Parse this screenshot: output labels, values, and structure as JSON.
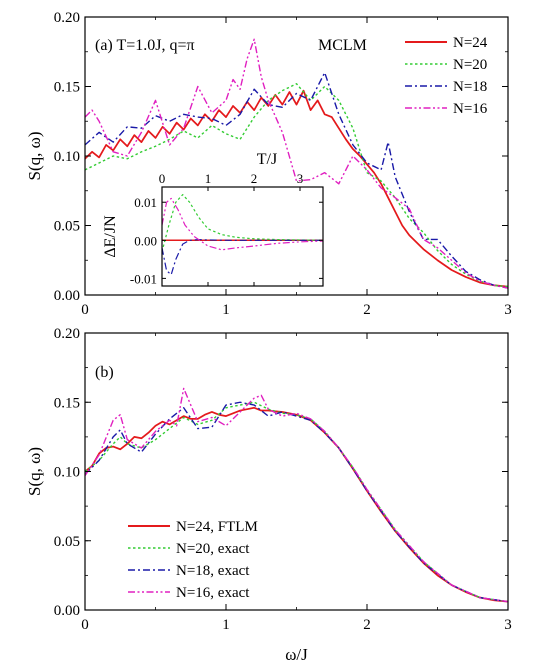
{
  "chart_data": [
    {
      "type": "line",
      "panel_label": "(a) T=1.0J, q=π",
      "annotation": "MCLM",
      "xlabel": "",
      "ylabel": "S(q, ω)",
      "xlim": [
        0,
        3
      ],
      "ylim": [
        0,
        0.2
      ],
      "xticks": [
        "0",
        "1",
        "2",
        "3"
      ],
      "yticks": [
        "0.00",
        "0.05",
        "0.10",
        "0.15",
        "0.20"
      ],
      "legend_position": "top-right",
      "series": [
        {
          "name": "N=24",
          "color": "#e41a1c",
          "dash": "solid",
          "x": [
            0,
            0.05,
            0.1,
            0.15,
            0.2,
            0.25,
            0.3,
            0.35,
            0.4,
            0.45,
            0.5,
            0.55,
            0.6,
            0.65,
            0.7,
            0.75,
            0.8,
            0.85,
            0.9,
            0.95,
            1.0,
            1.05,
            1.1,
            1.15,
            1.2,
            1.25,
            1.3,
            1.35,
            1.4,
            1.45,
            1.5,
            1.55,
            1.6,
            1.65,
            1.7,
            1.75,
            1.8,
            1.85,
            1.9,
            1.95,
            2.0,
            2.05,
            2.1,
            2.15,
            2.2,
            2.25,
            2.3,
            2.4,
            2.5,
            2.6,
            2.7,
            2.8,
            2.9,
            3.0
          ],
          "y": [
            0.098,
            0.103,
            0.099,
            0.108,
            0.104,
            0.112,
            0.107,
            0.115,
            0.11,
            0.118,
            0.113,
            0.121,
            0.116,
            0.124,
            0.119,
            0.127,
            0.122,
            0.13,
            0.125,
            0.133,
            0.128,
            0.136,
            0.131,
            0.139,
            0.133,
            0.142,
            0.136,
            0.144,
            0.137,
            0.146,
            0.137,
            0.147,
            0.133,
            0.14,
            0.13,
            0.128,
            0.12,
            0.112,
            0.105,
            0.1,
            0.094,
            0.088,
            0.08,
            0.07,
            0.06,
            0.05,
            0.043,
            0.033,
            0.025,
            0.018,
            0.013,
            0.009,
            0.007,
            0.006
          ]
        },
        {
          "name": "N=20",
          "color": "#33cc33",
          "dash": "dot",
          "x": [
            0,
            0.1,
            0.2,
            0.3,
            0.4,
            0.5,
            0.6,
            0.7,
            0.8,
            0.9,
            1.0,
            1.1,
            1.2,
            1.3,
            1.4,
            1.5,
            1.6,
            1.7,
            1.8,
            1.9,
            2.0,
            2.1,
            2.2,
            2.3,
            2.4,
            2.5,
            2.6,
            2.7,
            2.8,
            2.9,
            3.0
          ],
          "y": [
            0.09,
            0.095,
            0.1,
            0.098,
            0.103,
            0.107,
            0.112,
            0.118,
            0.113,
            0.122,
            0.116,
            0.112,
            0.128,
            0.14,
            0.147,
            0.152,
            0.14,
            0.15,
            0.14,
            0.12,
            0.088,
            0.082,
            0.07,
            0.055,
            0.045,
            0.032,
            0.022,
            0.015,
            0.01,
            0.007,
            0.006
          ]
        },
        {
          "name": "N=18",
          "color": "#1a1aa8",
          "dash": "dashdot",
          "x": [
            0,
            0.1,
            0.2,
            0.3,
            0.4,
            0.5,
            0.6,
            0.7,
            0.8,
            0.9,
            1.0,
            1.1,
            1.2,
            1.3,
            1.4,
            1.5,
            1.6,
            1.7,
            1.8,
            1.9,
            2.0,
            2.1,
            2.15,
            2.2,
            2.3,
            2.4,
            2.5,
            2.6,
            2.7,
            2.8,
            2.9,
            3.0
          ],
          "y": [
            0.108,
            0.117,
            0.11,
            0.121,
            0.12,
            0.129,
            0.125,
            0.13,
            0.128,
            0.127,
            0.122,
            0.13,
            0.148,
            0.137,
            0.135,
            0.145,
            0.14,
            0.16,
            0.13,
            0.108,
            0.095,
            0.09,
            0.11,
            0.085,
            0.06,
            0.04,
            0.04,
            0.028,
            0.017,
            0.011,
            0.007,
            0.005
          ]
        },
        {
          "name": "N=16",
          "color": "#e020c0",
          "dash": "dashdotdot",
          "x": [
            0,
            0.05,
            0.1,
            0.2,
            0.3,
            0.4,
            0.5,
            0.6,
            0.7,
            0.8,
            0.9,
            1.0,
            1.05,
            1.1,
            1.15,
            1.2,
            1.25,
            1.3,
            1.4,
            1.5,
            1.6,
            1.7,
            1.8,
            1.9,
            2.0,
            2.1,
            2.2,
            2.3,
            2.4,
            2.5,
            2.6,
            2.7,
            2.8,
            2.9,
            3.0
          ],
          "y": [
            0.128,
            0.133,
            0.125,
            0.103,
            0.1,
            0.117,
            0.14,
            0.108,
            0.12,
            0.15,
            0.131,
            0.14,
            0.155,
            0.148,
            0.17,
            0.184,
            0.157,
            0.14,
            0.117,
            0.082,
            0.083,
            0.088,
            0.08,
            0.1,
            0.09,
            0.077,
            0.07,
            0.062,
            0.04,
            0.034,
            0.025,
            0.016,
            0.01,
            0.007,
            0.005
          ]
        }
      ]
    },
    {
      "type": "line",
      "panel_label": "",
      "xlabel": "T/J",
      "ylabel": "ΔE/JN",
      "xlim": [
        0,
        3.5
      ],
      "ylim": [
        -0.012,
        0.014
      ],
      "xticks": [
        "0",
        "1",
        "2",
        "3"
      ],
      "yticks": [
        "-0.01",
        "0.00",
        "0.01"
      ],
      "series": [
        {
          "name": "N=24",
          "color": "#e41a1c",
          "dash": "solid",
          "x": [
            0,
            0.5,
            1,
            1.5,
            2,
            2.5,
            3,
            3.5
          ],
          "y": [
            0,
            0,
            0,
            0,
            0,
            0,
            0,
            0
          ]
        },
        {
          "name": "N=20",
          "color": "#33cc33",
          "dash": "dot",
          "x": [
            0,
            0.15,
            0.3,
            0.45,
            0.6,
            0.8,
            1.0,
            1.3,
            1.6,
            2.0,
            2.5,
            3.0,
            3.5
          ],
          "y": [
            -0.003,
            0.004,
            0.01,
            0.012,
            0.01,
            0.006,
            0.003,
            0.0015,
            0.0008,
            0.0004,
            0.0002,
            0.0001,
            0.0
          ]
        },
        {
          "name": "N=18",
          "color": "#1a1aa8",
          "dash": "dashdot",
          "x": [
            0,
            0.1,
            0.2,
            0.3,
            0.45,
            0.6,
            0.8,
            1.0,
            1.5,
            2.0,
            3.0,
            3.5
          ],
          "y": [
            -0.002,
            -0.008,
            -0.009,
            -0.005,
            -0.001,
            0.0,
            0.0002,
            0.0001,
            0.0,
            0.0,
            0.0,
            0.0
          ]
        },
        {
          "name": "N=16",
          "color": "#e020c0",
          "dash": "dashdotdot",
          "x": [
            0,
            0.1,
            0.2,
            0.35,
            0.5,
            0.7,
            1.0,
            1.3,
            1.6,
            2.0,
            2.5,
            3.0,
            3.5
          ],
          "y": [
            0.004,
            0.01,
            0.011,
            0.008,
            0.004,
            0.001,
            -0.0015,
            -0.0025,
            -0.002,
            -0.0015,
            -0.0008,
            -0.0004,
            -0.0002
          ]
        }
      ]
    },
    {
      "type": "line",
      "panel_label": "(b)",
      "xlabel": "ω/J",
      "ylabel": "S(q, ω)",
      "xlim": [
        0,
        3
      ],
      "ylim": [
        0,
        0.2
      ],
      "xticks": [
        "0",
        "1",
        "2",
        "3"
      ],
      "yticks": [
        "0.00",
        "0.05",
        "0.10",
        "0.15",
        "0.20"
      ],
      "legend_position": "center-left",
      "series": [
        {
          "name": "N=24, FTLM",
          "color": "#e41a1c",
          "dash": "solid",
          "x": [
            0,
            0.05,
            0.1,
            0.15,
            0.2,
            0.25,
            0.3,
            0.35,
            0.4,
            0.45,
            0.5,
            0.55,
            0.6,
            0.65,
            0.7,
            0.75,
            0.8,
            0.85,
            0.9,
            0.95,
            1.0,
            1.05,
            1.1,
            1.15,
            1.2,
            1.25,
            1.3,
            1.4,
            1.5,
            1.6,
            1.7,
            1.8,
            1.9,
            2.0,
            2.1,
            2.2,
            2.3,
            2.4,
            2.5,
            2.6,
            2.7,
            2.8,
            2.9,
            3.0
          ],
          "y": [
            0.1,
            0.104,
            0.113,
            0.117,
            0.118,
            0.116,
            0.12,
            0.125,
            0.124,
            0.128,
            0.133,
            0.136,
            0.134,
            0.137,
            0.14,
            0.138,
            0.138,
            0.141,
            0.143,
            0.141,
            0.14,
            0.142,
            0.144,
            0.145,
            0.146,
            0.144,
            0.144,
            0.143,
            0.141,
            0.137,
            0.128,
            0.117,
            0.102,
            0.086,
            0.071,
            0.057,
            0.045,
            0.034,
            0.025,
            0.018,
            0.013,
            0.009,
            0.007,
            0.006
          ]
        },
        {
          "name": "N=20, exact",
          "color": "#33cc33",
          "dash": "dot",
          "x": [
            0,
            0.1,
            0.2,
            0.25,
            0.3,
            0.4,
            0.5,
            0.6,
            0.7,
            0.8,
            0.9,
            1.0,
            1.1,
            1.2,
            1.3,
            1.4,
            1.5,
            1.6,
            1.7,
            1.8,
            1.9,
            2.0,
            2.2,
            2.4,
            2.6,
            2.8,
            3.0
          ],
          "y": [
            0.1,
            0.108,
            0.12,
            0.125,
            0.12,
            0.117,
            0.123,
            0.131,
            0.139,
            0.134,
            0.137,
            0.146,
            0.148,
            0.15,
            0.145,
            0.142,
            0.141,
            0.138,
            0.129,
            0.117,
            0.103,
            0.087,
            0.058,
            0.035,
            0.018,
            0.009,
            0.006
          ]
        },
        {
          "name": "N=18, exact",
          "color": "#1a1aa8",
          "dash": "dashdot",
          "x": [
            0,
            0.1,
            0.2,
            0.25,
            0.3,
            0.4,
            0.5,
            0.6,
            0.7,
            0.8,
            0.9,
            1.0,
            1.1,
            1.2,
            1.3,
            1.4,
            1.5,
            1.6,
            1.7,
            1.8,
            1.9,
            2.0,
            2.2,
            2.4,
            2.6,
            2.8,
            3.0
          ],
          "y": [
            0.098,
            0.108,
            0.125,
            0.13,
            0.12,
            0.114,
            0.127,
            0.138,
            0.146,
            0.131,
            0.132,
            0.148,
            0.15,
            0.148,
            0.14,
            0.143,
            0.14,
            0.137,
            0.128,
            0.117,
            0.102,
            0.086,
            0.057,
            0.034,
            0.018,
            0.009,
            0.006
          ]
        },
        {
          "name": "N=16, exact",
          "color": "#e020c0",
          "dash": "dashdotdot",
          "x": [
            0,
            0.1,
            0.2,
            0.25,
            0.3,
            0.4,
            0.5,
            0.6,
            0.65,
            0.7,
            0.75,
            0.8,
            0.9,
            1.0,
            1.1,
            1.2,
            1.25,
            1.3,
            1.4,
            1.5,
            1.6,
            1.7,
            1.8,
            1.9,
            2.0,
            2.2,
            2.4,
            2.6,
            2.8,
            3.0
          ],
          "y": [
            0.097,
            0.112,
            0.137,
            0.141,
            0.123,
            0.117,
            0.129,
            0.137,
            0.133,
            0.16,
            0.148,
            0.136,
            0.139,
            0.133,
            0.143,
            0.153,
            0.155,
            0.145,
            0.14,
            0.142,
            0.138,
            0.129,
            0.117,
            0.103,
            0.087,
            0.058,
            0.035,
            0.018,
            0.009,
            0.006
          ]
        }
      ]
    }
  ]
}
